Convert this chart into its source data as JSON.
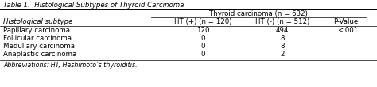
{
  "title": "Table 1.  Histological Subtypes of Thyroid Carcinoma.",
  "group_header": "Thyroid carcinoma (n = 632)",
  "col_headers": [
    "Histological subtype",
    "HT (+) (n = 120)",
    "HT (-) (n = 512)",
    "P-Value"
  ],
  "rows": [
    [
      "Papillary carcinoma",
      "120",
      "494",
      "<.001"
    ],
    [
      "Follicular carcinoma",
      "0",
      "8",
      ""
    ],
    [
      "Medullary carcinoma",
      "0",
      "8",
      ""
    ],
    [
      "Anaplastic carcinoma",
      "0",
      "2",
      ""
    ]
  ],
  "abbreviations": "Abbreviations: HT, Hashimoto’s thyroiditis.",
  "bg_color": "#ffffff",
  "text_color": "#000000",
  "font_size": 6.2,
  "title_font_size": 6.2
}
